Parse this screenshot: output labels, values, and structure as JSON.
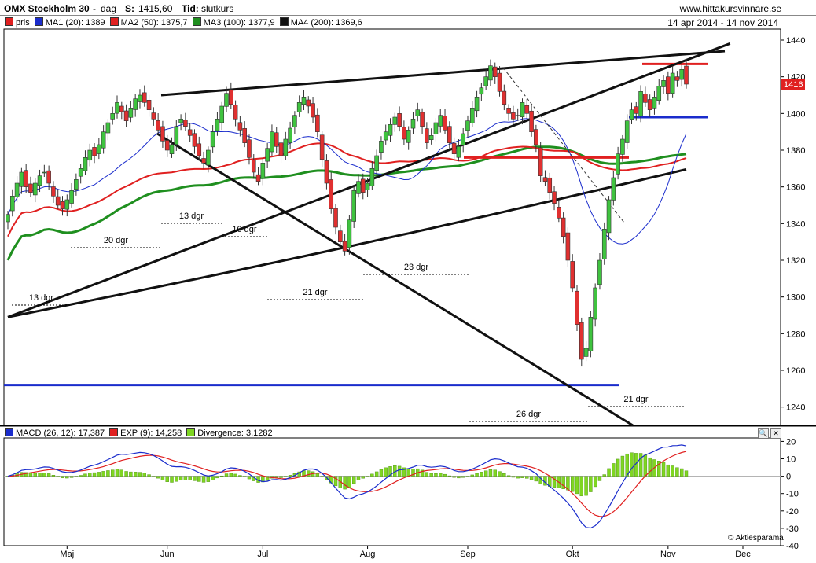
{
  "header": {
    "title": "OMX Stockholm 30",
    "interval_sep": "-",
    "interval": "dag",
    "s_label": "S:",
    "s_value": "1415,60",
    "tid_label": "Tid:",
    "tid_value": "slutkurs",
    "site": "www.hittakursvinnare.se",
    "date_range": "14 apr 2014 - 14 nov 2014"
  },
  "legend_main": [
    {
      "label": "pris",
      "color": "#e02020"
    },
    {
      "label": "MA1 (20): 1389",
      "color": "#1a2ccc"
    },
    {
      "label": "MA2 (50): 1375,7",
      "color": "#e02020"
    },
    {
      "label": "MA3 (100): 1377,9",
      "color": "#1f8f1f"
    },
    {
      "label": "MA4 (200): 1369,6",
      "color": "#111111"
    }
  ],
  "legend_macd": [
    {
      "label": "MACD (26, 12): 17,387",
      "color": "#1a2ccc"
    },
    {
      "label": "EXP (9): 14,258",
      "color": "#e02020"
    },
    {
      "label": "Divergence: 3,1282",
      "color": "#7fd622"
    }
  ],
  "price_tag": "1416",
  "watermark": "© Aktiesparama",
  "chart_data": [
    {
      "type": "candlestick",
      "title": "OMX Stockholm 30",
      "y_ticks": [
        1240,
        1260,
        1280,
        1300,
        1320,
        1340,
        1360,
        1380,
        1400,
        1420,
        1440
      ],
      "ylim": [
        1230,
        1446
      ],
      "x_ticks": [
        "Maj",
        "Jun",
        "Jul",
        "Aug",
        "Sep",
        "Okt",
        "Nov",
        "Dec"
      ],
      "grid": false,
      "closes": [
        1345,
        1355,
        1362,
        1368,
        1360,
        1357,
        1362,
        1366,
        1368,
        1362,
        1355,
        1350,
        1348,
        1353,
        1358,
        1364,
        1370,
        1376,
        1380,
        1377,
        1383,
        1390,
        1395,
        1400,
        1406,
        1401,
        1396,
        1403,
        1408,
        1410,
        1406,
        1402,
        1397,
        1391,
        1385,
        1380,
        1383,
        1393,
        1397,
        1393,
        1388,
        1382,
        1377,
        1373,
        1380,
        1390,
        1397,
        1404,
        1411,
        1405,
        1397,
        1391,
        1384,
        1376,
        1368,
        1363,
        1373,
        1381,
        1390,
        1382,
        1377,
        1386,
        1392,
        1399,
        1406,
        1409,
        1404,
        1398,
        1390,
        1375,
        1362,
        1348,
        1338,
        1330,
        1325,
        1342,
        1358,
        1363,
        1357,
        1362,
        1370,
        1377,
        1385,
        1390,
        1394,
        1398,
        1393,
        1386,
        1391,
        1397,
        1402,
        1393,
        1384,
        1388,
        1395,
        1399,
        1391,
        1384,
        1378,
        1382,
        1389,
        1396,
        1403,
        1409,
        1414,
        1420,
        1426,
        1420,
        1412,
        1405,
        1400,
        1397,
        1399,
        1406,
        1400,
        1390,
        1383,
        1366,
        1363,
        1357,
        1351,
        1343,
        1333,
        1320,
        1305,
        1285,
        1266,
        1272,
        1289,
        1305,
        1320,
        1337,
        1353,
        1365,
        1378,
        1386,
        1396,
        1402,
        1400,
        1412,
        1406,
        1402,
        1409,
        1415,
        1418,
        1411,
        1422,
        1418,
        1424,
        1416
      ],
      "annotations": [
        "13 dgr",
        "20 dgr",
        "13 dgr",
        "10 dgr",
        "21 dgr",
        "23 dgr",
        "26 dgr",
        "21 dgr"
      ],
      "hlines": [
        {
          "y": 1252,
          "color": "#1a2ccc"
        },
        {
          "y": 1398,
          "color": "#1a2ccc"
        },
        {
          "y": 1376,
          "color": "#e02020"
        },
        {
          "y": 1427,
          "color": "#e02020"
        }
      ],
      "trendlines": [
        {
          "from": [
            0,
            1289
          ],
          "to": [
            150,
            1433
          ],
          "color": "#111111"
        },
        {
          "from": [
            37,
            1410
          ],
          "to": [
            150,
            1434
          ],
          "color": "#111111"
        },
        {
          "from": [
            37,
            1389
          ],
          "to": [
            150,
            1235
          ],
          "color": "#111111"
        }
      ],
      "series": [
        {
          "name": "MA1 (20)",
          "color": "#1a2ccc",
          "last": 1389
        },
        {
          "name": "MA2 (50)",
          "color": "#e02020",
          "last": 1375.7
        },
        {
          "name": "MA3 (100)",
          "color": "#1f8f1f",
          "last": 1377.9
        },
        {
          "name": "MA4 (200)",
          "color": "#111111",
          "last": 1369.6
        }
      ]
    },
    {
      "type": "line",
      "title": "MACD",
      "y_ticks": [
        -40,
        -30,
        -20,
        -10,
        0,
        10,
        20
      ],
      "ylim": [
        -40,
        22
      ],
      "series": [
        {
          "name": "MACD (26, 12)",
          "color": "#1a2ccc",
          "last": 17.387
        },
        {
          "name": "EXP (9)",
          "color": "#e02020",
          "last": 14.258
        },
        {
          "name": "Divergence",
          "color": "#7fd622",
          "last": 3.1282
        }
      ]
    }
  ]
}
